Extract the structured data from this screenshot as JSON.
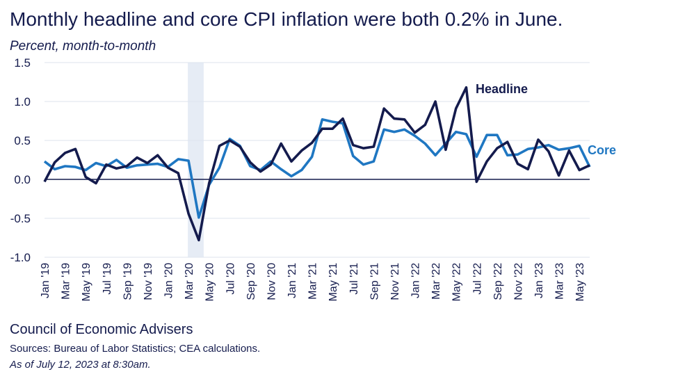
{
  "header": {
    "title": "Monthly headline and core CPI inflation were both 0.2% in June.",
    "subtitle": "Percent, month-to-month"
  },
  "footer": {
    "org": "Council of Economic Advisers",
    "sources": "Sources: Bureau of Labor Statistics; CEA calculations.",
    "as_of": "As of July 12, 2023 at 8:30am."
  },
  "colors": {
    "headline": "#141b4d",
    "core": "#1f77c2",
    "shade": "#e6ecf5",
    "grid": "#dde3ee",
    "axis": "#141b4d"
  },
  "chart_data": {
    "type": "line",
    "ylim": [
      -1.0,
      1.5
    ],
    "yticks": [
      "-1.0",
      "-0.5",
      "0.0",
      "0.5",
      "1.0",
      "1.5"
    ],
    "ytick_values": [
      -1.0,
      -0.5,
      0.0,
      0.5,
      1.0,
      1.5
    ],
    "grid": true,
    "x_tick_labels": [
      "Jan '19",
      "Mar '19",
      "May '19",
      "Jul '19",
      "Sep '19",
      "Nov '19",
      "Jan '20",
      "Mar '20",
      "May '20",
      "Jul '20",
      "Sep '20",
      "Nov '20",
      "Jan '21",
      "Mar '21",
      "May '21",
      "Jul '21",
      "Sep '21",
      "Nov '21",
      "Jan '22",
      "Mar '22",
      "May '22",
      "Jul '22",
      "Sep '22",
      "Nov '22",
      "Jan '23",
      "Mar '23",
      "May '23"
    ],
    "shaded_period": [
      "Mar 2020",
      "Apr 2020"
    ],
    "x": [
      "2019-01",
      "2019-02",
      "2019-03",
      "2019-04",
      "2019-05",
      "2019-06",
      "2019-07",
      "2019-08",
      "2019-09",
      "2019-10",
      "2019-11",
      "2019-12",
      "2020-01",
      "2020-02",
      "2020-03",
      "2020-04",
      "2020-05",
      "2020-06",
      "2020-07",
      "2020-08",
      "2020-09",
      "2020-10",
      "2020-11",
      "2020-12",
      "2021-01",
      "2021-02",
      "2021-03",
      "2021-04",
      "2021-05",
      "2021-06",
      "2021-07",
      "2021-08",
      "2021-09",
      "2021-10",
      "2021-11",
      "2021-12",
      "2022-01",
      "2022-02",
      "2022-03",
      "2022-04",
      "2022-05",
      "2022-06",
      "2022-07",
      "2022-08",
      "2022-09",
      "2022-10",
      "2022-11",
      "2022-12",
      "2023-01",
      "2023-02",
      "2023-03",
      "2023-04",
      "2023-05",
      "2023-06"
    ],
    "series": [
      {
        "name": "Headline",
        "values": [
          -0.03,
          0.22,
          0.34,
          0.39,
          0.03,
          -0.05,
          0.19,
          0.14,
          0.17,
          0.28,
          0.21,
          0.31,
          0.15,
          0.08,
          -0.44,
          -0.78,
          -0.05,
          0.43,
          0.5,
          0.42,
          0.22,
          0.1,
          0.19,
          0.46,
          0.23,
          0.37,
          0.47,
          0.65,
          0.65,
          0.78,
          0.44,
          0.4,
          0.42,
          0.91,
          0.78,
          0.77,
          0.6,
          0.7,
          1.0,
          0.38,
          0.91,
          1.18,
          -0.03,
          0.23,
          0.4,
          0.48,
          0.2,
          0.13,
          0.51,
          0.36,
          0.05,
          0.37,
          0.12,
          0.18
        ]
      },
      {
        "name": "Core",
        "values": [
          0.23,
          0.13,
          0.17,
          0.16,
          0.12,
          0.21,
          0.17,
          0.25,
          0.15,
          0.18,
          0.19,
          0.2,
          0.16,
          0.26,
          0.24,
          -0.49,
          -0.07,
          0.15,
          0.52,
          0.43,
          0.17,
          0.12,
          0.23,
          0.13,
          0.04,
          0.12,
          0.29,
          0.77,
          0.74,
          0.72,
          0.3,
          0.19,
          0.23,
          0.64,
          0.61,
          0.64,
          0.56,
          0.46,
          0.31,
          0.46,
          0.61,
          0.58,
          0.29,
          0.57,
          0.57,
          0.31,
          0.32,
          0.39,
          0.41,
          0.44,
          0.38,
          0.4,
          0.43,
          0.16
        ]
      }
    ],
    "annotations": [
      "Headline",
      "Core"
    ]
  }
}
